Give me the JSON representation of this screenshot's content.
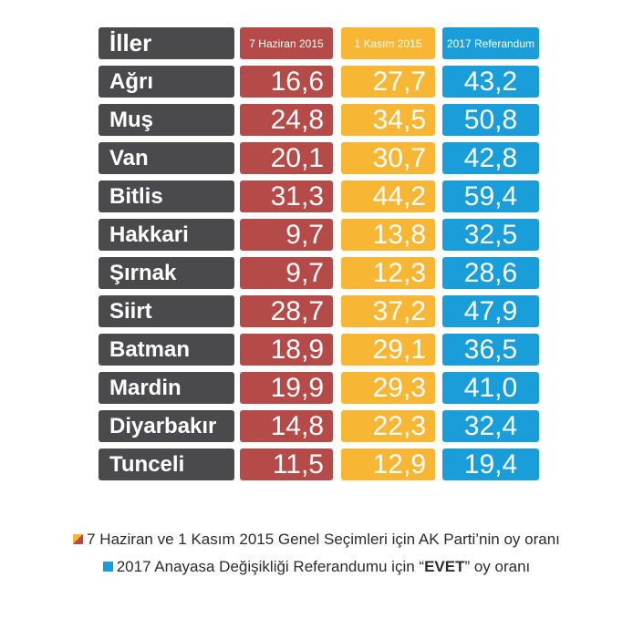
{
  "chart_data": {
    "type": "table",
    "columns": [
      "İller",
      "7 Haziran 2015",
      "1 Kasım 2015",
      "2017 Referandum"
    ],
    "rows": [
      {
        "il": "Ağrı",
        "v1": "16,6",
        "v2": "27,7",
        "v3": "43,2"
      },
      {
        "il": "Muş",
        "v1": "24,8",
        "v2": "34,5",
        "v3": "50,8"
      },
      {
        "il": "Van",
        "v1": "20,1",
        "v2": "30,7",
        "v3": "42,8"
      },
      {
        "il": "Bitlis",
        "v1": "31,3",
        "v2": "44,2",
        "v3": "59,4"
      },
      {
        "il": "Hakkari",
        "v1": "9,7",
        "v2": "13,8",
        "v3": "32,5"
      },
      {
        "il": "Şırnak",
        "v1": "9,7",
        "v2": "12,3",
        "v3": "28,6"
      },
      {
        "il": "Siirt",
        "v1": "28,7",
        "v2": "37,2",
        "v3": "47,9"
      },
      {
        "il": "Batman",
        "v1": "18,9",
        "v2": "29,1",
        "v3": "36,5"
      },
      {
        "il": "Mardin",
        "v1": "19,9",
        "v2": "29,3",
        "v3": "41,0"
      },
      {
        "il": "Diyarbakır",
        "v1": "14,8",
        "v2": "22,3",
        "v3": "32,4"
      },
      {
        "il": "Tunceli",
        "v1": "11,5",
        "v2": "12,9",
        "v3": "19,4"
      }
    ],
    "colors": {
      "name_cell": "#4a4a4c",
      "col_7_haziran": "#b54b48",
      "col_1_kasim": "#f7b633",
      "col_referandum": "#1a9ed9"
    }
  },
  "legend": {
    "item1": "7 Haziran ve 1 Kasım 2015 Genel Seçimleri için AK Parti’nin oy oranı",
    "item2_pre": "2017 Anayasa Değişikliği Referandumu için “",
    "item2_bold": "EVET",
    "item2_post": "” oy oranı"
  }
}
